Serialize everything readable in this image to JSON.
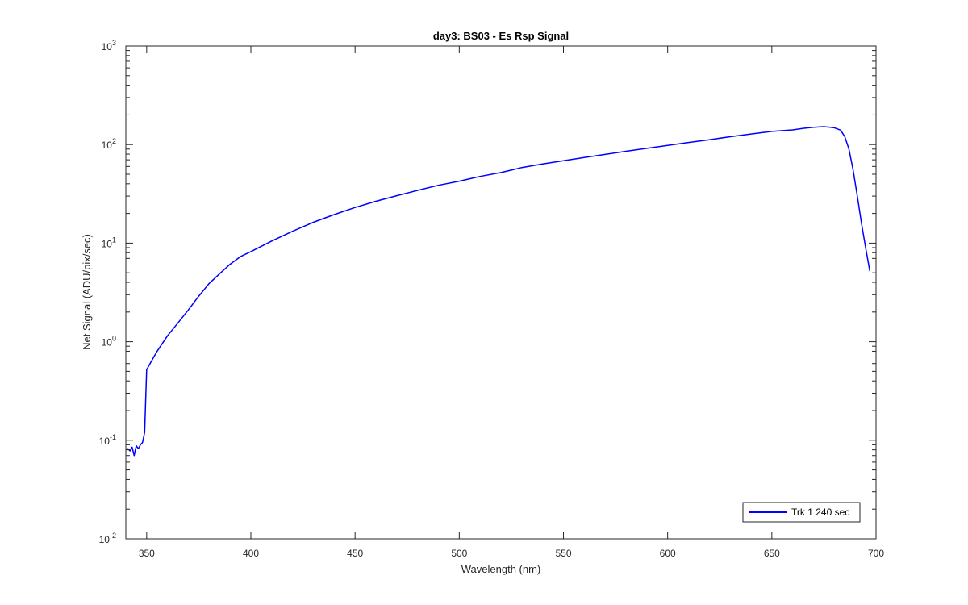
{
  "chart_data": {
    "type": "line",
    "title": "day3: BS03 - Es Rsp Signal",
    "xlabel": "Wavelength (nm)",
    "ylabel": "Net Signal (ADU/pix/sec)",
    "xlim": [
      340,
      700
    ],
    "ylim": [
      0.01,
      1000
    ],
    "yscale": "log",
    "x_ticks": [
      350,
      400,
      450,
      500,
      550,
      600,
      650,
      700
    ],
    "y_ticks": [
      {
        "value": 0.01,
        "base": "10",
        "exp": "-2"
      },
      {
        "value": 0.1,
        "base": "10",
        "exp": "-1"
      },
      {
        "value": 1,
        "base": "10",
        "exp": "0"
      },
      {
        "value": 10,
        "base": "10",
        "exp": "1"
      },
      {
        "value": 100,
        "base": "10",
        "exp": "2"
      },
      {
        "value": 1000,
        "base": "10",
        "exp": "3"
      }
    ],
    "grid": false,
    "legend_position": "bottom-right",
    "series": [
      {
        "name": "Trk 1  240 sec",
        "color": "#0000ff",
        "x": [
          340,
          341,
          342,
          343,
          344,
          345,
          346,
          347,
          348,
          349,
          350,
          352,
          355,
          360,
          365,
          370,
          375,
          380,
          385,
          390,
          395,
          400,
          410,
          420,
          430,
          440,
          450,
          460,
          470,
          480,
          490,
          500,
          505,
          510,
          520,
          525,
          530,
          540,
          550,
          560,
          570,
          580,
          590,
          600,
          610,
          620,
          630,
          640,
          650,
          660,
          665,
          670,
          675,
          678,
          680,
          683,
          685,
          687,
          689,
          691,
          693,
          695,
          697
        ],
        "y": [
          0.08,
          0.082,
          0.078,
          0.085,
          0.07,
          0.088,
          0.082,
          0.09,
          0.095,
          0.12,
          0.52,
          0.62,
          0.8,
          1.15,
          1.55,
          2.1,
          2.9,
          3.9,
          4.9,
          6.1,
          7.3,
          8.2,
          10.5,
          13.2,
          16.3,
          19.5,
          23.0,
          26.6,
          30.3,
          34.3,
          38.6,
          42.5,
          45.0,
          47.5,
          52.0,
          55.0,
          58.5,
          63.5,
          68.5,
          74.0,
          79.5,
          85.5,
          91.5,
          98.0,
          105,
          112,
          120,
          128,
          136,
          141,
          146,
          150,
          152,
          150,
          148,
          140,
          120,
          90,
          55,
          30,
          16,
          9,
          5.2
        ]
      }
    ]
  }
}
